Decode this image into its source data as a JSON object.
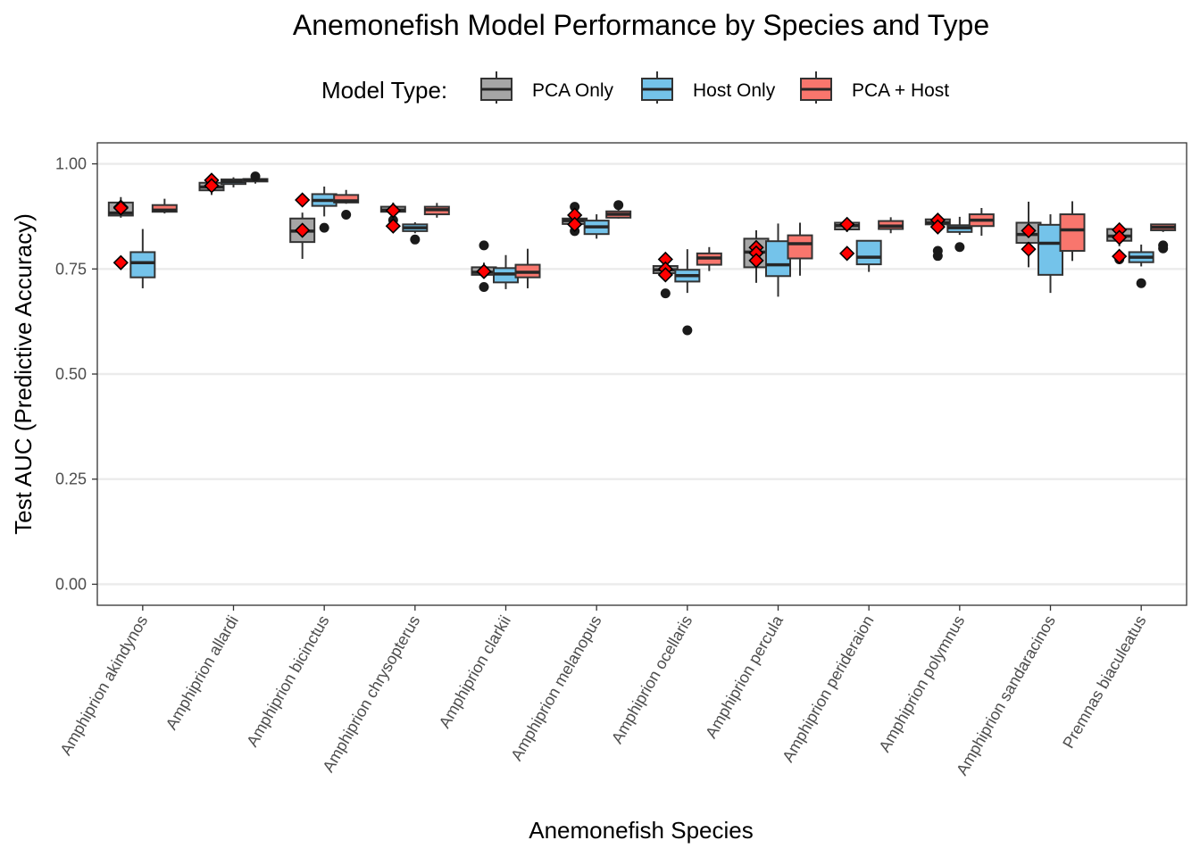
{
  "chart_data": {
    "type": "boxplot",
    "title": "Anemonefish Model Performance by Species and Type",
    "xlabel": "Anemonefish Species",
    "ylabel": "Test AUC (Predictive Accuracy)",
    "ylim": [
      -0.05,
      1.05
    ],
    "y_ticks": [
      "0.00",
      "0.25",
      "0.50",
      "0.75",
      "1.00"
    ],
    "grid": "horizontal",
    "legend": {
      "title": "Model Type:",
      "placement": "top"
    },
    "categories": [
      "Amphiprion akindynos",
      "Amphiprion allardi",
      "Amphiprion bicinctus",
      "Amphiprion chrysopterus",
      "Amphiprion clarkii",
      "Amphiprion melanopus",
      "Amphiprion ocellaris",
      "Amphiprion percula",
      "Amphiprion perideraion",
      "Amphiprion polymnus",
      "Amphiprion sandaracinos",
      "Premnas biaculeatus"
    ],
    "series": [
      {
        "name": "PCA Only",
        "color": "#a6a6a6",
        "boxes": [
          {
            "min": 0.872,
            "q1": 0.877,
            "median": 0.883,
            "q3": 0.908,
            "max": 0.921,
            "outliers": []
          },
          {
            "min": 0.926,
            "q1": 0.937,
            "median": 0.945,
            "q3": 0.955,
            "max": 0.962,
            "outliers": []
          },
          {
            "min": 0.774,
            "q1": 0.814,
            "median": 0.84,
            "q3": 0.87,
            "max": 0.884,
            "outliers": []
          },
          {
            "min": 0.885,
            "q1": 0.886,
            "median": 0.89,
            "q3": 0.898,
            "max": 0.908,
            "outliers": [
              0.866
            ]
          },
          {
            "min": 0.728,
            "q1": 0.736,
            "median": 0.742,
            "q3": 0.754,
            "max": 0.765,
            "outliers": [
              0.806,
              0.707
            ]
          },
          {
            "min": 0.852,
            "q1": 0.857,
            "median": 0.865,
            "q3": 0.87,
            "max": 0.878,
            "outliers": [
              0.898,
              0.84
            ]
          },
          {
            "min": 0.735,
            "q1": 0.74,
            "median": 0.748,
            "q3": 0.757,
            "max": 0.76,
            "outliers": [
              0.692
            ]
          },
          {
            "min": 0.717,
            "q1": 0.754,
            "median": 0.79,
            "q3": 0.822,
            "max": 0.842,
            "outliers": []
          },
          {
            "min": 0.838,
            "q1": 0.844,
            "median": 0.853,
            "q3": 0.86,
            "max": 0.866,
            "outliers": []
          },
          {
            "min": 0.853,
            "q1": 0.856,
            "median": 0.86,
            "q3": 0.868,
            "max": 0.879,
            "outliers": [
              0.793,
              0.781
            ]
          },
          {
            "min": 0.754,
            "q1": 0.812,
            "median": 0.832,
            "q3": 0.86,
            "max": 0.91,
            "outliers": []
          },
          {
            "min": 0.804,
            "q1": 0.817,
            "median": 0.828,
            "q3": 0.845,
            "max": 0.85,
            "outliers": [
              0.773
            ]
          }
        ]
      },
      {
        "name": "Host Only",
        "color": "#74c3ea",
        "boxes": [
          {
            "min": 0.704,
            "q1": 0.73,
            "median": 0.765,
            "q3": 0.79,
            "max": 0.845,
            "outliers": []
          },
          {
            "min": 0.944,
            "q1": 0.952,
            "median": 0.958,
            "q3": 0.963,
            "max": 0.968,
            "outliers": []
          },
          {
            "min": 0.875,
            "q1": 0.9,
            "median": 0.913,
            "q3": 0.928,
            "max": 0.946,
            "outliers": [
              0.848
            ]
          },
          {
            "min": 0.835,
            "q1": 0.84,
            "median": 0.848,
            "q3": 0.856,
            "max": 0.861,
            "outliers": [
              0.82
            ]
          },
          {
            "min": 0.702,
            "q1": 0.718,
            "median": 0.738,
            "q3": 0.752,
            "max": 0.783,
            "outliers": []
          },
          {
            "min": 0.822,
            "q1": 0.833,
            "median": 0.85,
            "q3": 0.865,
            "max": 0.88,
            "outliers": []
          },
          {
            "min": 0.693,
            "q1": 0.72,
            "median": 0.734,
            "q3": 0.748,
            "max": 0.797,
            "outliers": [
              0.604
            ]
          },
          {
            "min": 0.684,
            "q1": 0.733,
            "median": 0.76,
            "q3": 0.816,
            "max": 0.858,
            "outliers": []
          },
          {
            "min": 0.743,
            "q1": 0.761,
            "median": 0.778,
            "q3": 0.817,
            "max": 0.818,
            "outliers": []
          },
          {
            "min": 0.831,
            "q1": 0.838,
            "median": 0.848,
            "q3": 0.854,
            "max": 0.874,
            "outliers": [
              0.802
            ]
          },
          {
            "min": 0.693,
            "q1": 0.736,
            "median": 0.811,
            "q3": 0.855,
            "max": 0.88,
            "outliers": []
          },
          {
            "min": 0.756,
            "q1": 0.766,
            "median": 0.778,
            "q3": 0.79,
            "max": 0.808,
            "outliers": [
              0.716
            ]
          }
        ]
      },
      {
        "name": "PCA + Host",
        "color": "#f8766d",
        "boxes": [
          {
            "min": 0.882,
            "q1": 0.886,
            "median": 0.89,
            "q3": 0.902,
            "max": 0.917,
            "outliers": []
          },
          {
            "min": 0.953,
            "q1": 0.958,
            "median": 0.962,
            "q3": 0.964,
            "max": 0.968,
            "outliers": [
              0.97
            ]
          },
          {
            "min": 0.905,
            "q1": 0.908,
            "median": 0.912,
            "q3": 0.926,
            "max": 0.938,
            "outliers": [
              0.879
            ]
          },
          {
            "min": 0.872,
            "q1": 0.88,
            "median": 0.891,
            "q3": 0.898,
            "max": 0.907,
            "outliers": []
          },
          {
            "min": 0.704,
            "q1": 0.73,
            "median": 0.742,
            "q3": 0.76,
            "max": 0.798,
            "outliers": []
          },
          {
            "min": 0.87,
            "q1": 0.872,
            "median": 0.88,
            "q3": 0.887,
            "max": 0.892,
            "outliers": [
              0.902
            ]
          },
          {
            "min": 0.745,
            "q1": 0.76,
            "median": 0.776,
            "q3": 0.787,
            "max": 0.802,
            "outliers": []
          },
          {
            "min": 0.734,
            "q1": 0.775,
            "median": 0.81,
            "q3": 0.83,
            "max": 0.86,
            "outliers": []
          },
          {
            "min": 0.835,
            "q1": 0.845,
            "median": 0.852,
            "q3": 0.864,
            "max": 0.873,
            "outliers": []
          },
          {
            "min": 0.829,
            "q1": 0.852,
            "median": 0.866,
            "q3": 0.88,
            "max": 0.895,
            "outliers": []
          },
          {
            "min": 0.769,
            "q1": 0.793,
            "median": 0.843,
            "q3": 0.88,
            "max": 0.911,
            "outliers": []
          },
          {
            "min": 0.838,
            "q1": 0.842,
            "median": 0.849,
            "q3": 0.856,
            "max": 0.857,
            "outliers": [
              0.806,
              0.799
            ]
          }
        ]
      }
    ],
    "highlight_points": [
      {
        "category": "Amphiprion akindynos",
        "values": [
          0.897,
          0.895,
          0.765
        ]
      },
      {
        "category": "Amphiprion allardi",
        "values": [
          0.961,
          0.948
        ]
      },
      {
        "category": "Amphiprion bicinctus",
        "values": [
          0.914,
          0.842
        ]
      },
      {
        "category": "Amphiprion chrysopterus",
        "values": [
          0.889,
          0.852
        ]
      },
      {
        "category": "Amphiprion clarkii",
        "values": [
          0.744,
          0.744
        ]
      },
      {
        "category": "Amphiprion melanopus",
        "values": [
          0.878,
          0.856
        ]
      },
      {
        "category": "Amphiprion ocellaris",
        "values": [
          0.773,
          0.75,
          0.736
        ]
      },
      {
        "category": "Amphiprion percula",
        "values": [
          0.801,
          0.788,
          0.77
        ]
      },
      {
        "category": "Amphiprion perideraion",
        "values": [
          0.856,
          0.787
        ]
      },
      {
        "category": "Amphiprion polymnus",
        "values": [
          0.866,
          0.85
        ]
      },
      {
        "category": "Amphiprion sandaracinos",
        "values": [
          0.841,
          0.797
        ]
      },
      {
        "category": "Premnas biaculeatus",
        "values": [
          0.843,
          0.825,
          0.78
        ]
      }
    ],
    "highlight_color": "#ff0000"
  }
}
